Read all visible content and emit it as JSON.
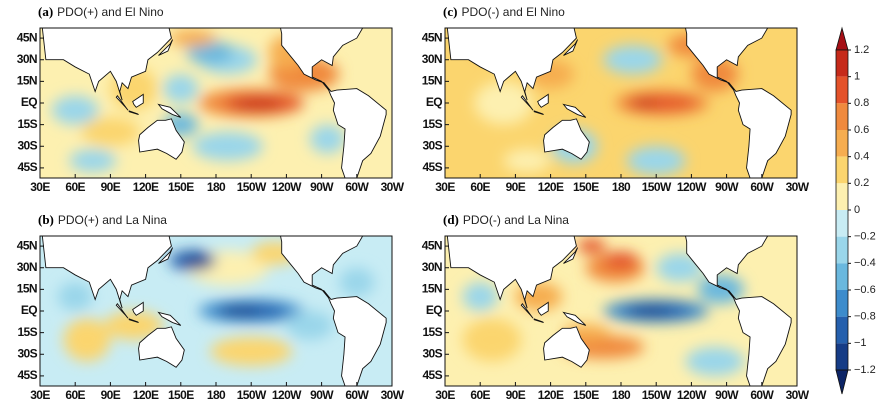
{
  "panels": [
    {
      "label": "(a)",
      "title": "PDO(+) and El Nino"
    },
    {
      "label": "(c)",
      "title": "PDO(-) and El Nino"
    },
    {
      "label": "(b)",
      "title": "PDO(+) and La Nina"
    },
    {
      "label": "(d)",
      "title": "PDO(-) and La Nina"
    }
  ],
  "lat_range": [
    -52,
    52
  ],
  "lon_range": [
    30,
    330
  ],
  "lat_ticks": [
    {
      "value": 45,
      "label": "45N"
    },
    {
      "value": 30,
      "label": "30N"
    },
    {
      "value": 15,
      "label": "15N"
    },
    {
      "value": 0,
      "label": "EQ"
    },
    {
      "value": -15,
      "label": "15S"
    },
    {
      "value": -30,
      "label": "30S"
    },
    {
      "value": -45,
      "label": "45S"
    }
  ],
  "lon_ticks": [
    {
      "value": 30,
      "label": "30E"
    },
    {
      "value": 60,
      "label": "60E"
    },
    {
      "value": 90,
      "label": "90E"
    },
    {
      "value": 120,
      "label": "120E"
    },
    {
      "value": 150,
      "label": "150E"
    },
    180,
    {
      "value": 210,
      "label": "150W"
    },
    {
      "value": 240,
      "label": "120W"
    },
    {
      "value": 270,
      "label": "90W"
    },
    {
      "value": 300,
      "label": "60W"
    },
    {
      "value": 330,
      "label": "30W"
    }
  ],
  "colorbar": {
    "range": [
      -1.2,
      1.2
    ],
    "ticks": [
      1.2,
      1,
      0.8,
      0.6,
      0.4,
      0.2,
      0,
      {
        "value": -0.2,
        "label": "−0.2"
      },
      {
        "value": -0.4,
        "label": "−0.4"
      },
      {
        "value": -0.6,
        "label": "−0.6"
      },
      {
        "value": -0.8,
        "label": "−0.8"
      },
      {
        "value": -1,
        "label": "−1"
      },
      {
        "value": -1.2,
        "label": "−1.2"
      }
    ],
    "colors": [
      "#a50f15",
      "#c62a1a",
      "#e4522a",
      "#f08a3e",
      "#f6ad50",
      "#fbd56e",
      "#fdf0b0",
      "#c8ecf4",
      "#9ad6ea",
      "#6ab8de",
      "#3d8ccc",
      "#2560ad",
      "#163c86",
      "#0c2466"
    ]
  }
}
